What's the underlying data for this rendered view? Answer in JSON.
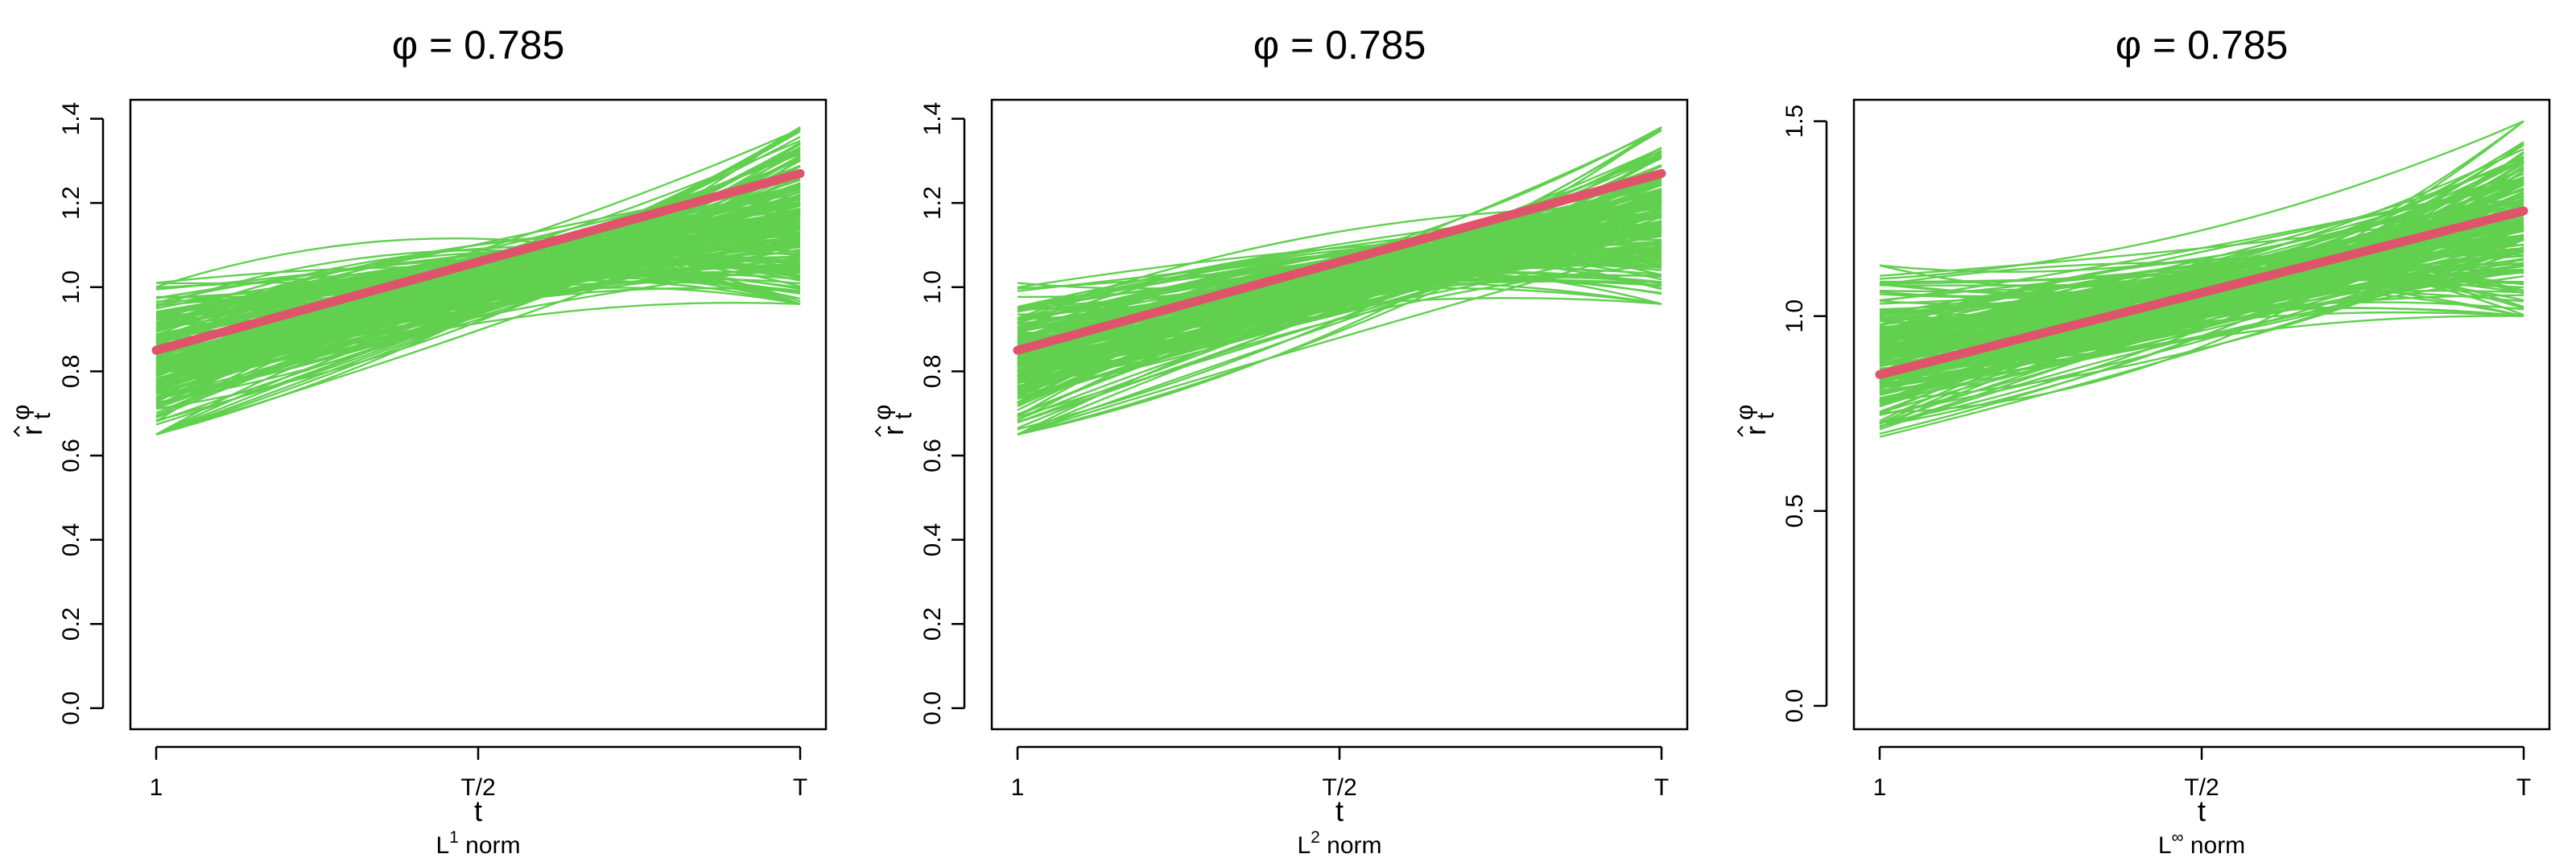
{
  "colors": {
    "bootstrap": "#61D04F",
    "truth": "#DF536B",
    "axis": "#000000"
  },
  "chart_data": [
    {
      "type": "line",
      "title": "φ = 0.785",
      "xlabel": "t",
      "ylabel_base": "r",
      "ylabel_sub": "t",
      "ylabel_sup": "φ",
      "note_prefix": "L",
      "note_sup": "1",
      "note_suffix": " norm",
      "x_ticks": [
        "1",
        "T/2",
        "T"
      ],
      "x": [
        0,
        0.5,
        1
      ],
      "ylim": [
        -0.05,
        1.445
      ],
      "y_ticks": [
        0.0,
        0.2,
        0.4,
        0.6,
        0.8,
        1.0,
        1.2,
        1.4
      ],
      "y_tick_labels": [
        "0.0",
        "0.2",
        "0.4",
        "0.6",
        "0.8",
        "1.0",
        "1.2",
        "1.4"
      ],
      "truth": {
        "start": 0.85,
        "end": 1.27
      },
      "bootstrap": {
        "n_curves": 200,
        "start_range": [
          0.65,
          1.01
        ],
        "mid_range": [
          0.88,
          1.14
        ],
        "end_range": [
          0.96,
          1.38
        ]
      }
    },
    {
      "type": "line",
      "title": "φ = 0.785",
      "xlabel": "t",
      "ylabel_base": "r",
      "ylabel_sub": "t",
      "ylabel_sup": "φ",
      "note_prefix": "L",
      "note_sup": "2",
      "note_suffix": " norm",
      "x_ticks": [
        "1",
        "T/2",
        "T"
      ],
      "x": [
        0,
        0.5,
        1
      ],
      "ylim": [
        -0.05,
        1.445
      ],
      "y_ticks": [
        0.0,
        0.2,
        0.4,
        0.6,
        0.8,
        1.0,
        1.2,
        1.4
      ],
      "y_tick_labels": [
        "0.0",
        "0.2",
        "0.4",
        "0.6",
        "0.8",
        "1.0",
        "1.2",
        "1.4"
      ],
      "truth": {
        "start": 0.85,
        "end": 1.27
      },
      "bootstrap": {
        "n_curves": 200,
        "start_range": [
          0.65,
          1.01
        ],
        "mid_range": [
          0.88,
          1.14
        ],
        "end_range": [
          0.96,
          1.38
        ]
      }
    },
    {
      "type": "line",
      "title": "φ = 0.785",
      "xlabel": "t",
      "ylabel_base": "r",
      "ylabel_sub": "t",
      "ylabel_sup": "φ",
      "note_prefix": "L",
      "note_sup": "∞",
      "note_suffix": " norm",
      "x_ticks": [
        "1",
        "T/2",
        "T"
      ],
      "x": [
        0,
        0.5,
        1
      ],
      "ylim": [
        -0.06,
        1.555
      ],
      "y_ticks": [
        0.0,
        0.5,
        1.0,
        1.5
      ],
      "y_tick_labels": [
        "0.0",
        "0.5",
        "1.0",
        "1.5"
      ],
      "truth": {
        "start": 0.85,
        "end": 1.27
      },
      "bootstrap": {
        "n_curves": 200,
        "start_range": [
          0.69,
          1.13
        ],
        "mid_range": [
          0.88,
          1.22
        ],
        "end_range": [
          1.0,
          1.5
        ]
      }
    }
  ]
}
